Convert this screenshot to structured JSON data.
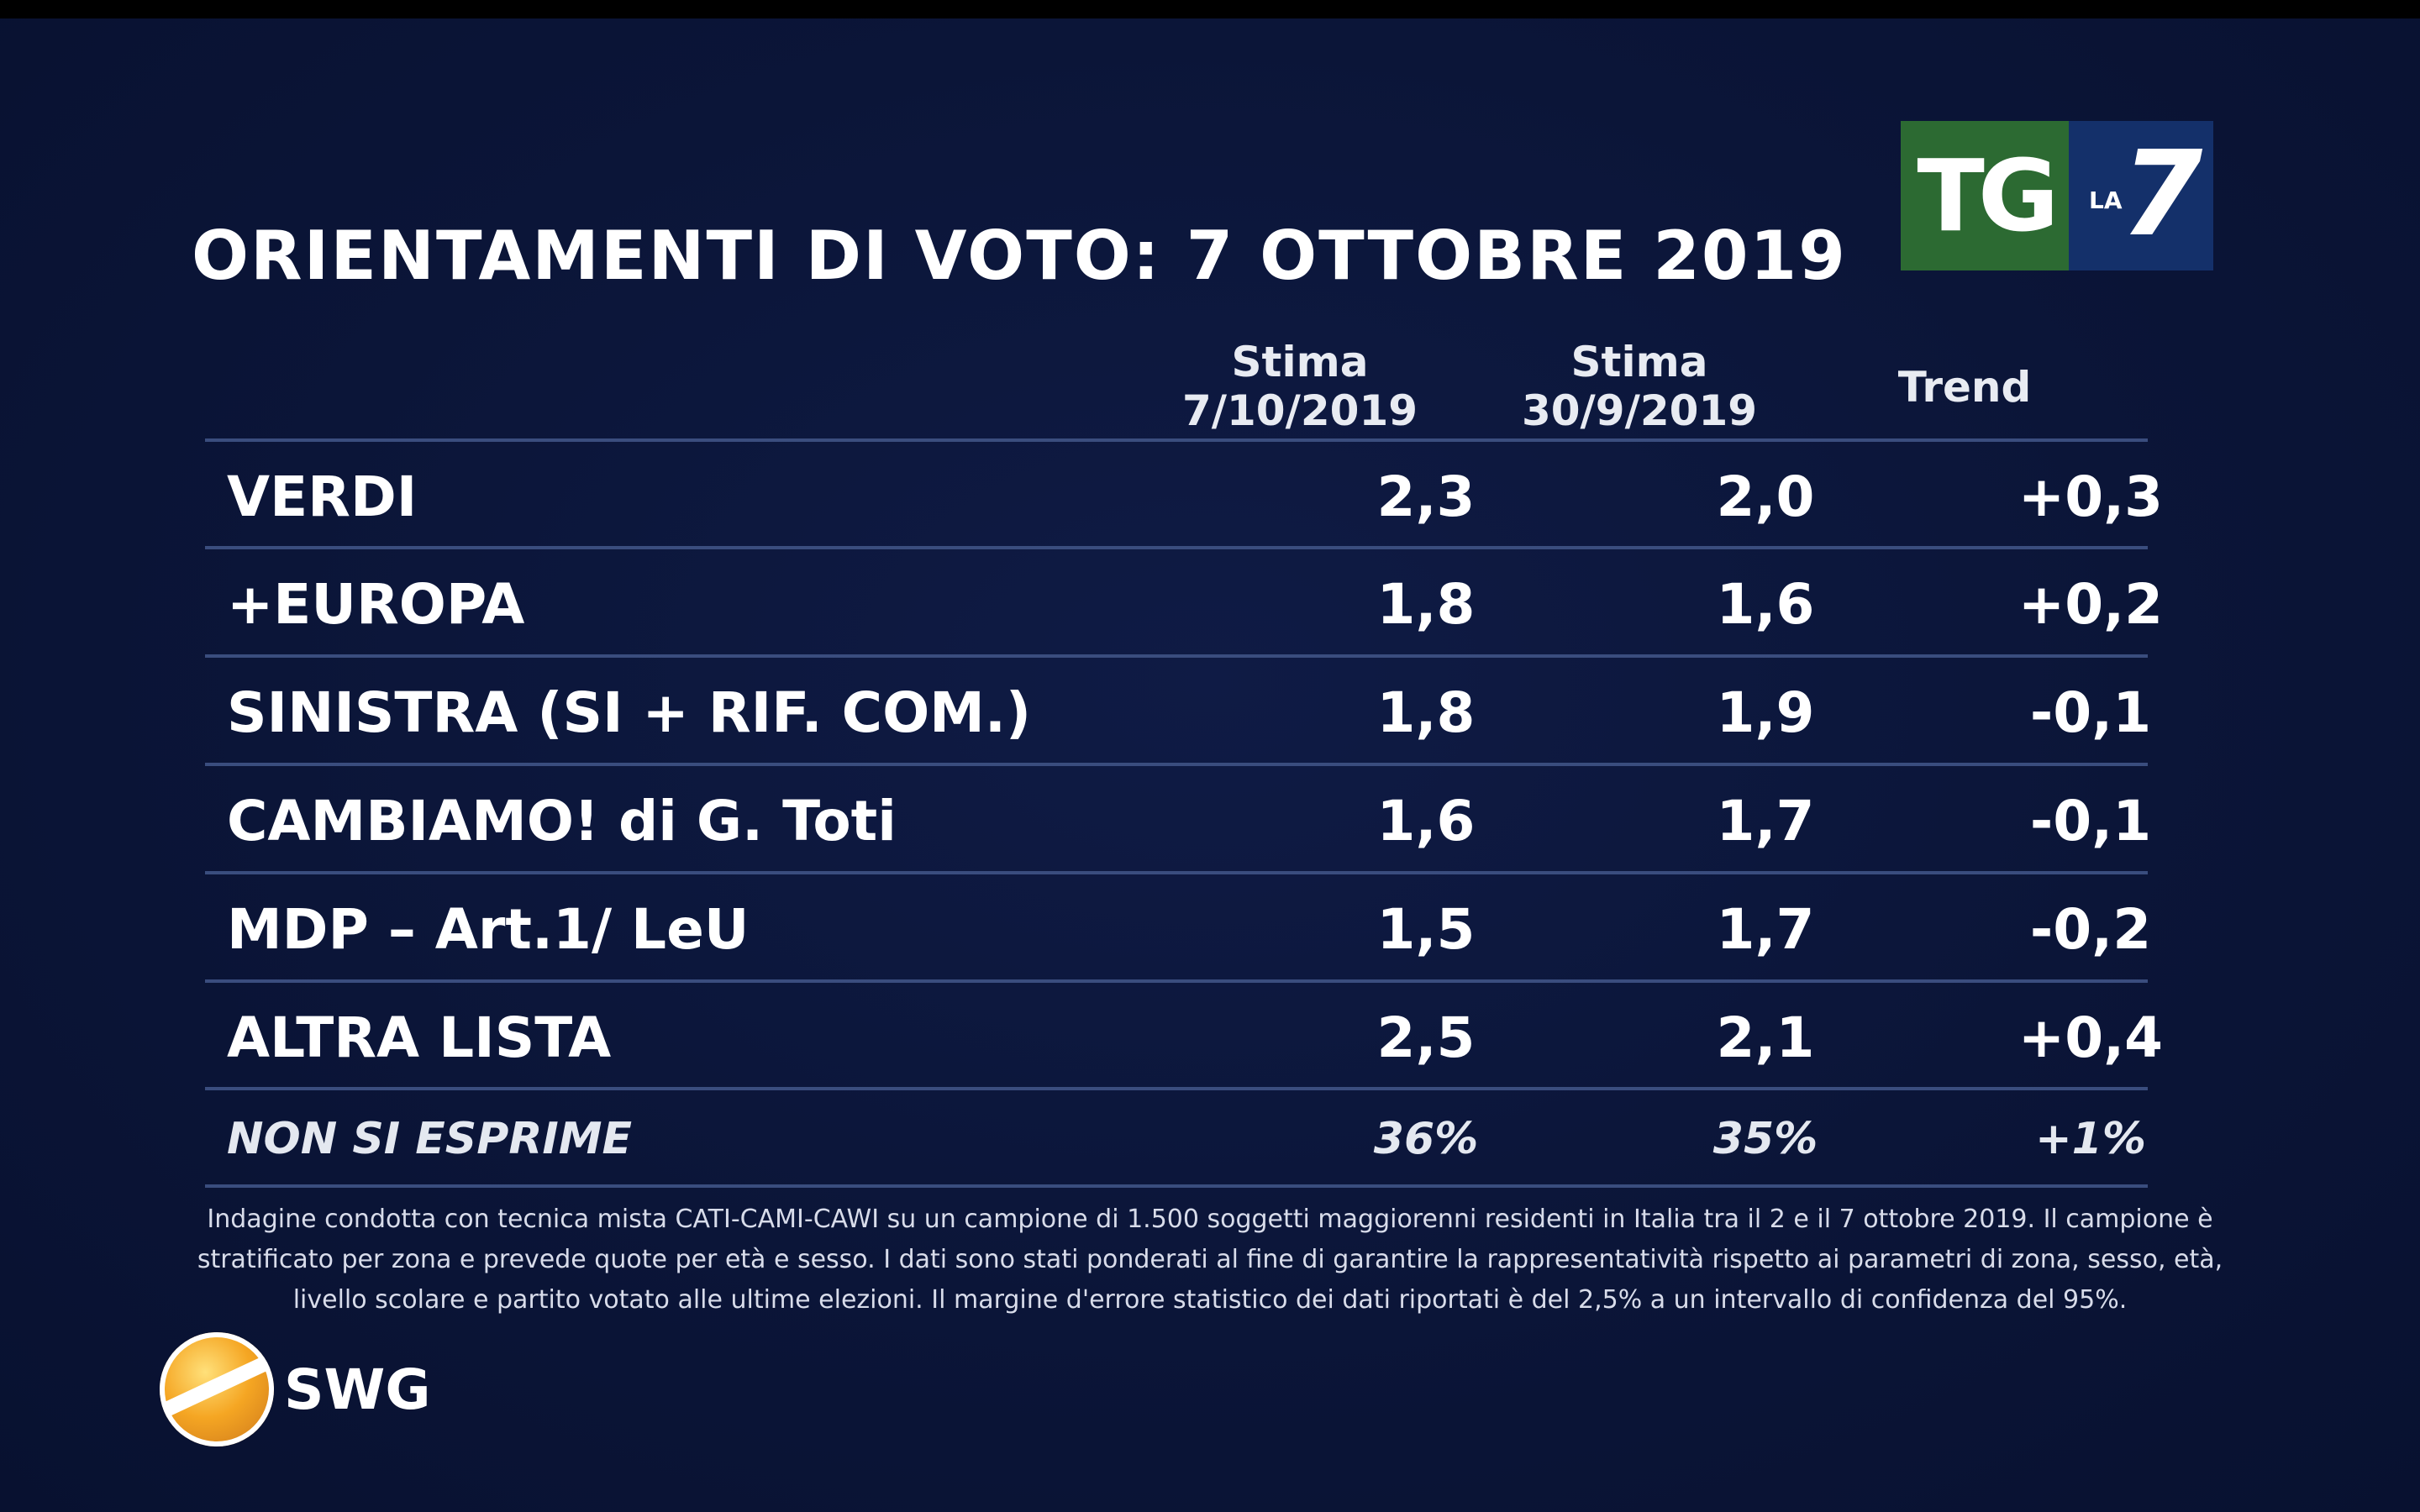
{
  "title": "ORIENTAMENTI DI VOTO: 7 OTTOBRE 2019",
  "logo": {
    "tg": "TG",
    "la": "LA",
    "seven": "7"
  },
  "columns": {
    "c1_line1": "Stima",
    "c1_line2": "7/10/2019",
    "c2_line1": "Stima",
    "c2_line2": "30/9/2019",
    "c3": "Trend"
  },
  "chart_data": {
    "type": "table",
    "title": "ORIENTAMENTI DI VOTO: 7 OTTOBRE 2019",
    "headers": [
      "",
      "Stima 7/10/2019",
      "Stima 30/9/2019",
      "Trend"
    ],
    "rows": [
      {
        "party": "VERDI",
        "stima_7_10": "2,3",
        "stima_30_9": "2,0",
        "trend": "+0,3"
      },
      {
        "party": "+EUROPA",
        "stima_7_10": "1,8",
        "stima_30_9": "1,6",
        "trend": "+0,2"
      },
      {
        "party": "SINISTRA (SI + RIF. COM.)",
        "stima_7_10": "1,8",
        "stima_30_9": "1,9",
        "trend": "-0,1"
      },
      {
        "party": "CAMBIAMO! di G. Toti",
        "stima_7_10": "1,6",
        "stima_30_9": "1,7",
        "trend": "-0,1"
      },
      {
        "party": "MDP – Art.1/ LeU",
        "stima_7_10": "1,5",
        "stima_30_9": "1,7",
        "trend": "-0,2"
      },
      {
        "party": "ALTRA LISTA",
        "stima_7_10": "2,5",
        "stima_30_9": "2,1",
        "trend": "+0,4"
      },
      {
        "party": "NON SI ESPRIME",
        "stima_7_10": "36%",
        "stima_30_9": "35%",
        "trend": "+1%"
      }
    ]
  },
  "footnote": "Indagine condotta con tecnica mista CATI-CAMI-CAWI su un campione di 1.500 soggetti maggiorenni residenti in Italia tra il 2 e il 7 ottobre 2019. Il campione è stratificato per zona e prevede quote per età e sesso. I dati sono stati ponderati al fine di garantire la rappresentatività rispetto ai parametri di zona, sesso, età, livello scolare e partito votato alle ultime elezioni. Il margine d'errore statistico dei dati riportati è del 2,5% a un intervallo di confidenza del 95%.",
  "swg": "SWG",
  "colors": {
    "background": "#0b1538",
    "tg_green": "#2c6a32",
    "la7_blue": "#14306a",
    "rule": "#3a4d7e"
  }
}
